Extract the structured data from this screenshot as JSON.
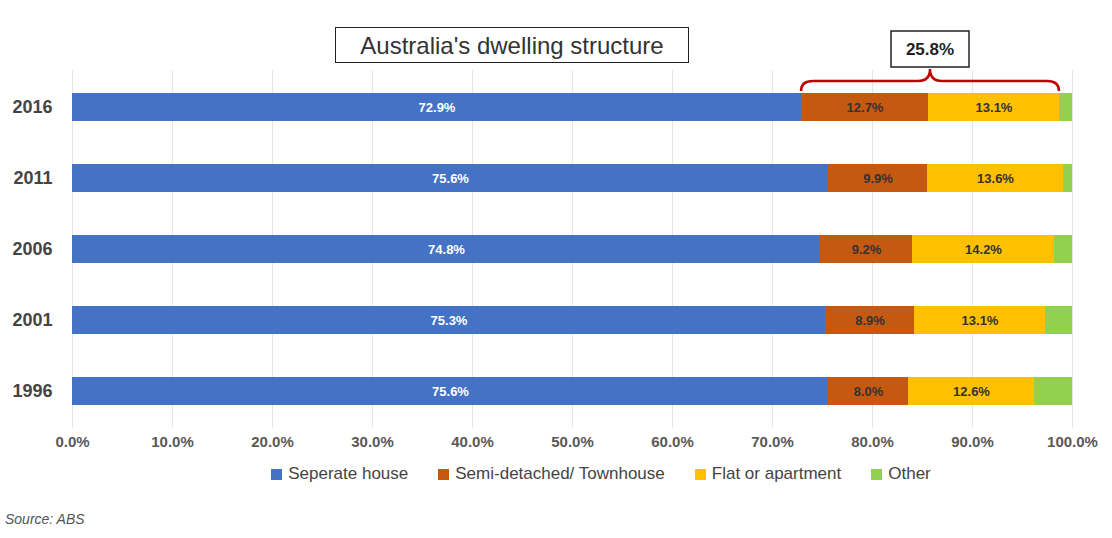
{
  "chart_data": {
    "type": "bar",
    "title": "Australia's dwelling structure",
    "orientation": "horizontal",
    "stacked": true,
    "data_labels": true,
    "grid": true,
    "legend": "bottom",
    "categories": [
      "2016",
      "2011",
      "2006",
      "2001",
      "1996"
    ],
    "series": [
      {
        "name": "Seperate house",
        "color": "#4472C4",
        "values": [
          72.9,
          75.6,
          74.8,
          75.3,
          75.6
        ],
        "value_labels": [
          "72.9%",
          "75.6%",
          "74.8%",
          "75.3%",
          "75.6%"
        ]
      },
      {
        "name": "Semi-detached/ Townhouse",
        "color": "#C65911",
        "values": [
          12.7,
          9.9,
          9.2,
          8.9,
          8.0
        ],
        "value_labels": [
          "12.7%",
          "9.9%",
          "9.2%",
          "8.9%",
          "8.0%"
        ]
      },
      {
        "name": "Flat or apartment",
        "color": "#FFC000",
        "values": [
          13.1,
          13.6,
          14.2,
          13.1,
          12.6
        ],
        "value_labels": [
          "13.1%",
          "13.6%",
          "14.2%",
          "13.1%",
          "12.6%"
        ]
      },
      {
        "name": "Other",
        "color": "#92D050",
        "values": [
          1.3,
          0.9,
          1.8,
          2.7,
          3.8
        ],
        "value_labels": [
          null,
          null,
          null,
          null,
          null
        ]
      }
    ],
    "xlim": [
      0,
      100
    ],
    "xticks": [
      {
        "value": 0,
        "label": "0.0%"
      },
      {
        "value": 10,
        "label": "10.0%"
      },
      {
        "value": 20,
        "label": "20.0%"
      },
      {
        "value": 30,
        "label": "30.0%"
      },
      {
        "value": 40,
        "label": "40.0%"
      },
      {
        "value": 50,
        "label": "50.0%"
      },
      {
        "value": 60,
        "label": "60.0%"
      },
      {
        "value": 70,
        "label": "70.0%"
      },
      {
        "value": 80,
        "label": "80.0%"
      },
      {
        "value": 90,
        "label": "90.0%"
      },
      {
        "value": 100,
        "label": "100.0%"
      }
    ],
    "annotations": [
      {
        "text": "25.8%",
        "category": "2016",
        "x": [
          72.9,
          98.7
        ]
      }
    ],
    "source": "Source: ABS"
  }
}
